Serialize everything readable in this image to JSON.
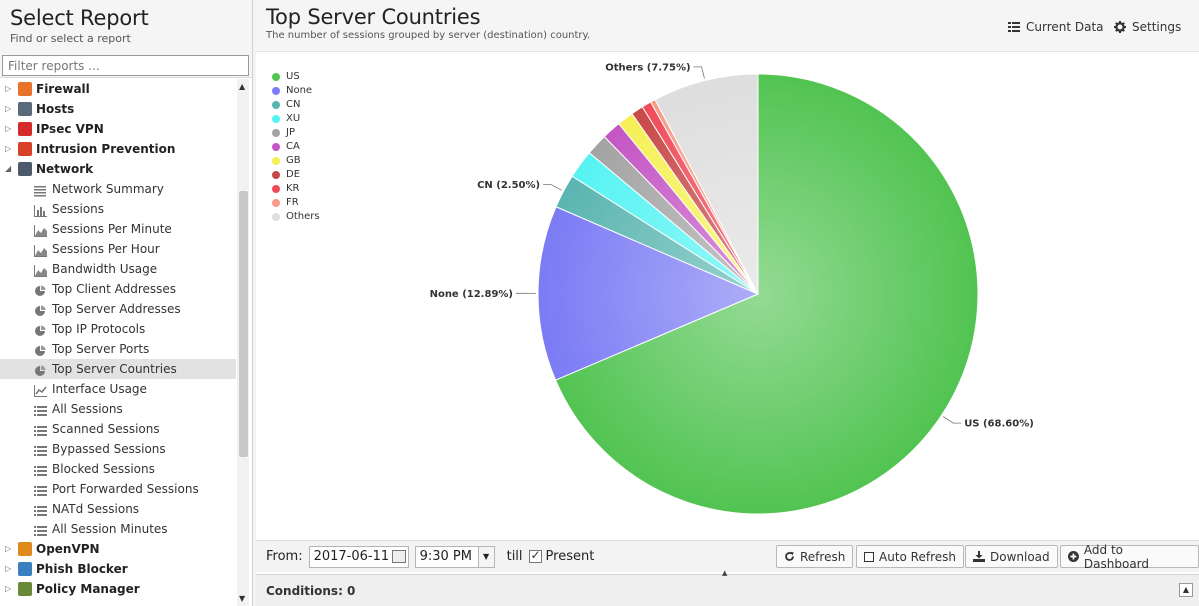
{
  "sidebar": {
    "title": "Select Report",
    "subtitle": "Find or select a report",
    "filter_placeholder": "Filter reports ...",
    "categories_top": [
      {
        "label": "Firewall",
        "icon": "firewall-icon",
        "color": "#e8742a"
      },
      {
        "label": "Hosts",
        "icon": "hosts-icon",
        "color": "#5a6a7a"
      },
      {
        "label": "IPsec VPN",
        "icon": "lock-icon",
        "color": "#d42b2b"
      },
      {
        "label": "Intrusion Prevention",
        "icon": "intrusion-icon",
        "color": "#d8402a"
      },
      {
        "label": "Network",
        "icon": "network-icon",
        "color": "#4b5b6b"
      }
    ],
    "reports": [
      {
        "label": "Network Summary",
        "icon": "text-list-icon"
      },
      {
        "label": "Sessions",
        "icon": "bar-chart-icon"
      },
      {
        "label": "Sessions Per Minute",
        "icon": "area-chart-icon"
      },
      {
        "label": "Sessions Per Hour",
        "icon": "area-chart-icon"
      },
      {
        "label": "Bandwidth Usage",
        "icon": "area-chart-icon"
      },
      {
        "label": "Top Client Addresses",
        "icon": "pie-chart-icon"
      },
      {
        "label": "Top Server Addresses",
        "icon": "pie-chart-icon"
      },
      {
        "label": "Top IP Protocols",
        "icon": "pie-chart-icon"
      },
      {
        "label": "Top Server Ports",
        "icon": "pie-chart-icon"
      },
      {
        "label": "Top Server Countries",
        "icon": "pie-chart-icon",
        "selected": true
      },
      {
        "label": "Interface Usage",
        "icon": "line-chart-icon"
      },
      {
        "label": "All Sessions",
        "icon": "list-icon"
      },
      {
        "label": "Scanned Sessions",
        "icon": "list-icon"
      },
      {
        "label": "Bypassed Sessions",
        "icon": "list-icon"
      },
      {
        "label": "Blocked Sessions",
        "icon": "list-icon"
      },
      {
        "label": "Port Forwarded Sessions",
        "icon": "list-icon"
      },
      {
        "label": "NATd Sessions",
        "icon": "list-icon"
      },
      {
        "label": "All Session Minutes",
        "icon": "list-icon"
      }
    ],
    "categories_bottom": [
      {
        "label": "OpenVPN",
        "icon": "openvpn-icon",
        "color": "#e08a1e"
      },
      {
        "label": "Phish Blocker",
        "icon": "phish-blocker-icon",
        "color": "#3a7fc0"
      },
      {
        "label": "Policy Manager",
        "icon": "policy-manager-icon",
        "color": "#6a8a3a"
      }
    ]
  },
  "header": {
    "title": "Top Server Countries",
    "subtitle": "The number of sessions grouped by server (destination) country.",
    "current_data_label": "Current Data",
    "settings_label": "Settings"
  },
  "chart_data": {
    "type": "pie",
    "categories": [
      "US",
      "None",
      "CN",
      "XU",
      "JP",
      "CA",
      "GB",
      "DE",
      "KR",
      "FR",
      "Others"
    ],
    "values": [
      68.6,
      12.89,
      2.5,
      2.1,
      1.6,
      1.4,
      1.2,
      0.9,
      0.7,
      0.36,
      7.75
    ],
    "colors": [
      "#52c452",
      "#7b7bf5",
      "#5ab5b0",
      "#55f3f3",
      "#a3a3a3",
      "#c455c4",
      "#f5f055",
      "#c84848",
      "#f04a5a",
      "#f89a88",
      "#dedede"
    ],
    "data_labels": [
      {
        "index": 0,
        "text": "US (68.60%)"
      },
      {
        "index": 1,
        "text": "None (12.89%)"
      },
      {
        "index": 2,
        "text": "CN (2.50%)"
      },
      {
        "index": 10,
        "text": "Others (7.75%)"
      }
    ],
    "legend_position": "top-left"
  },
  "footer": {
    "from_label": "From:",
    "date_value": "2017-06-11",
    "time_value": "9:30 PM",
    "till_label": "till",
    "present_label": "Present",
    "present_checked": true,
    "refresh_label": "Refresh",
    "auto_refresh_label": "Auto Refresh",
    "download_label": "Download",
    "add_dashboard_label": "Add to Dashboard"
  },
  "conditions": {
    "label": "Conditions: 0"
  }
}
